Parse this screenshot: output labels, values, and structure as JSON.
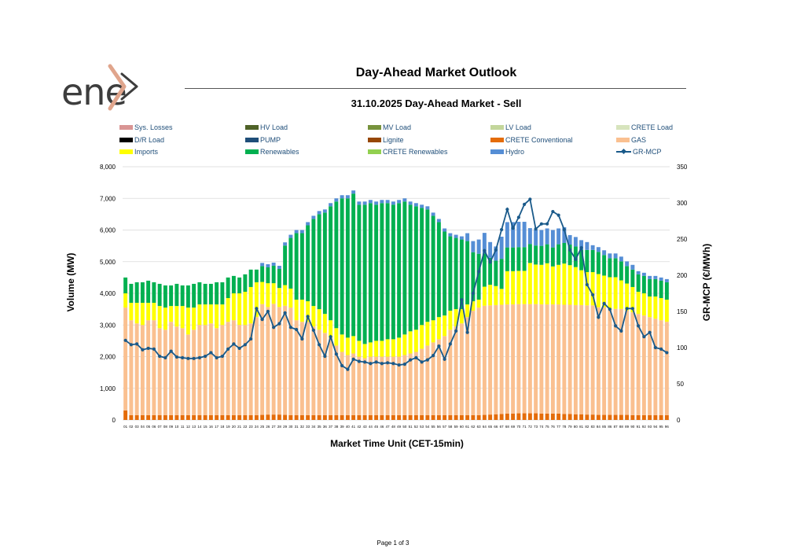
{
  "header": {
    "title": "Day-Ahead Market Outlook",
    "subtitle": "31.10.2025  Day-Ahead Market - Sell"
  },
  "logo": {
    "text": "ene",
    "icon": "enex-arrow-icon"
  },
  "footer": {
    "page": "Page 1 of 3"
  },
  "colors": {
    "sys_losses": "#d99594",
    "hv_load": "#4f6228",
    "mv_load": "#77933c",
    "lv_load": "#c3d69b",
    "crete_load": "#d7e4bd",
    "dr_load": "#000000",
    "pump": "#1f4e79",
    "lignite": "#974706",
    "crete_conventional": "#e46c0a",
    "gas": "#fac090",
    "imports": "#ffff00",
    "renewables": "#00b050",
    "crete_renewables": "#92d050",
    "hydro": "#558ed5",
    "gr_mcp": "#1a5a8a"
  },
  "chart_data": {
    "type": "bar",
    "stacked": true,
    "xlabel": "Market Time Unit (CET-15min)",
    "ylabel": "Volume (MW)",
    "y2label": "GR-MCP (€/MWh)",
    "ylim": [
      0,
      8000
    ],
    "y2lim": [
      0,
      350
    ],
    "yticks": [
      "0",
      "1,000",
      "2,000",
      "3,000",
      "4,000",
      "5,000",
      "6,000",
      "7,000",
      "8,000"
    ],
    "y2ticks": [
      "0",
      "50",
      "100",
      "150",
      "200",
      "250",
      "300",
      "350"
    ],
    "grid": true,
    "legend_position": "top",
    "legend": [
      {
        "key": "sys_losses",
        "label": "Sys. Losses",
        "kind": "bar"
      },
      {
        "key": "hv_load",
        "label": "HV Load",
        "kind": "bar"
      },
      {
        "key": "mv_load",
        "label": "MV Load",
        "kind": "bar"
      },
      {
        "key": "lv_load",
        "label": "LV Load",
        "kind": "bar"
      },
      {
        "key": "crete_load",
        "label": "CRETE Load",
        "kind": "bar"
      },
      {
        "key": "dr_load",
        "label": "D/R Load",
        "kind": "bar"
      },
      {
        "key": "pump",
        "label": "PUMP",
        "kind": "bar"
      },
      {
        "key": "lignite",
        "label": "Lignite",
        "kind": "bar"
      },
      {
        "key": "crete_conventional",
        "label": "CRETE Conventional",
        "kind": "bar"
      },
      {
        "key": "gas",
        "label": "GAS",
        "kind": "bar"
      },
      {
        "key": "imports",
        "label": "Imports",
        "kind": "bar"
      },
      {
        "key": "renewables",
        "label": "Renewables",
        "kind": "bar"
      },
      {
        "key": "crete_renewables",
        "label": "CRETE Renewables",
        "kind": "bar"
      },
      {
        "key": "hydro",
        "label": "Hydro",
        "kind": "bar"
      },
      {
        "key": "gr_mcp",
        "label": "GR-MCP",
        "kind": "line"
      }
    ],
    "categories": [
      "01",
      "02",
      "03",
      "04",
      "05",
      "06",
      "07",
      "08",
      "09",
      "10",
      "11",
      "12",
      "13",
      "14",
      "15",
      "16",
      "17",
      "18",
      "19",
      "20",
      "21",
      "22",
      "23",
      "24",
      "25",
      "26",
      "27",
      "28",
      "29",
      "30",
      "31",
      "32",
      "33",
      "34",
      "35",
      "36",
      "37",
      "38",
      "39",
      "40",
      "41",
      "42",
      "43",
      "44",
      "45",
      "46",
      "47",
      "48",
      "49",
      "50",
      "51",
      "52",
      "53",
      "54",
      "55",
      "56",
      "57",
      "58",
      "59",
      "60",
      "61",
      "62",
      "63",
      "64",
      "65",
      "66",
      "67",
      "68",
      "69",
      "70",
      "71",
      "72",
      "73",
      "74",
      "75",
      "76",
      "77",
      "78",
      "79",
      "80",
      "81",
      "82",
      "83",
      "84",
      "85",
      "86",
      "87",
      "88",
      "89",
      "90",
      "91",
      "92",
      "93",
      "94",
      "95",
      "96"
    ],
    "series": {
      "crete_conventional": [
        300,
        150,
        150,
        150,
        150,
        150,
        150,
        150,
        150,
        150,
        150,
        150,
        150,
        150,
        150,
        150,
        150,
        150,
        150,
        150,
        150,
        150,
        150,
        150,
        160,
        170,
        170,
        170,
        160,
        150,
        150,
        150,
        150,
        150,
        150,
        150,
        150,
        150,
        150,
        150,
        150,
        150,
        150,
        150,
        150,
        150,
        150,
        150,
        150,
        150,
        150,
        150,
        150,
        150,
        150,
        150,
        150,
        150,
        150,
        150,
        150,
        150,
        150,
        160,
        170,
        180,
        190,
        200,
        200,
        210,
        210,
        210,
        210,
        200,
        200,
        200,
        200,
        190,
        190,
        180,
        180,
        170,
        170,
        160,
        160,
        160,
        160,
        160,
        160,
        150,
        150,
        150,
        150,
        150,
        150,
        150
      ],
      "gas": [
        3250,
        3000,
        2900,
        2850,
        3000,
        3000,
        2750,
        2700,
        2950,
        2800,
        2750,
        2550,
        2700,
        2850,
        2850,
        2900,
        2750,
        2850,
        2950,
        3000,
        2850,
        2850,
        2900,
        3100,
        3500,
        3400,
        3500,
        3400,
        3450,
        3400,
        3000,
        2950,
        2950,
        2800,
        2700,
        2600,
        2450,
        2200,
        2000,
        1900,
        1950,
        1850,
        1800,
        1850,
        1850,
        1850,
        1850,
        1850,
        1850,
        1900,
        1950,
        2000,
        2100,
        2200,
        2300,
        2400,
        2500,
        2700,
        2800,
        2900,
        3100,
        3300,
        3400,
        3450,
        3450,
        3450,
        3450,
        3450,
        3450,
        3450,
        3450,
        3450,
        3450,
        3450,
        3450,
        3450,
        3450,
        3450,
        3450,
        3450,
        3450,
        3450,
        3450,
        3400,
        3400,
        3350,
        3350,
        3350,
        3300,
        3250,
        3200,
        3150,
        3100,
        3050,
        3000,
        2950
      ],
      "imports": [
        450,
        550,
        650,
        700,
        550,
        550,
        700,
        700,
        500,
        650,
        700,
        850,
        700,
        650,
        650,
        600,
        750,
        650,
        750,
        850,
        1000,
        1050,
        1150,
        1100,
        700,
        750,
        650,
        600,
        650,
        600,
        650,
        700,
        650,
        650,
        650,
        600,
        550,
        550,
        550,
        550,
        550,
        500,
        450,
        450,
        500,
        500,
        550,
        550,
        600,
        650,
        700,
        700,
        750,
        750,
        700,
        700,
        650,
        600,
        550,
        450,
        400,
        300,
        250,
        600,
        650,
        600,
        500,
        1050,
        1050,
        1050,
        1050,
        1300,
        1250,
        1250,
        1300,
        1200,
        1250,
        1300,
        1250,
        1200,
        1100,
        1050,
        1050,
        1050,
        1000,
        1000,
        1000,
        900,
        850,
        800,
        700,
        700,
        650,
        700,
        700,
        700
      ],
      "renewables": [
        500,
        600,
        650,
        650,
        700,
        650,
        700,
        700,
        650,
        700,
        650,
        700,
        750,
        700,
        650,
        650,
        700,
        700,
        650,
        550,
        500,
        550,
        550,
        400,
        500,
        500,
        550,
        600,
        1250,
        1600,
        2100,
        2100,
        2400,
        2750,
        3000,
        3200,
        3600,
        4000,
        4300,
        4400,
        4500,
        4300,
        4400,
        4400,
        4300,
        4350,
        4300,
        4250,
        4250,
        4200,
        4000,
        3900,
        3700,
        3550,
        3300,
        3000,
        2650,
        2350,
        2250,
        2200,
        2000,
        1550,
        1450,
        1050,
        850,
        800,
        950,
        750,
        750,
        750,
        750,
        600,
        600,
        600,
        600,
        600,
        650,
        650,
        650,
        650,
        650,
        700,
        700,
        700,
        650,
        600,
        600,
        600,
        550,
        550,
        550,
        550,
        550,
        550,
        550,
        550
      ],
      "hydro": [
        0,
        0,
        0,
        0,
        0,
        0,
        0,
        0,
        0,
        0,
        0,
        0,
        0,
        0,
        0,
        0,
        0,
        0,
        0,
        0,
        0,
        0,
        0,
        0,
        100,
        100,
        100,
        100,
        100,
        100,
        100,
        100,
        100,
        100,
        100,
        100,
        100,
        100,
        100,
        100,
        100,
        100,
        100,
        100,
        100,
        100,
        100,
        100,
        100,
        100,
        100,
        100,
        100,
        100,
        100,
        100,
        100,
        100,
        100,
        100,
        250,
        350,
        450,
        650,
        500,
        450,
        700,
        800,
        800,
        800,
        800,
        500,
        500,
        500,
        500,
        550,
        500,
        500,
        300,
        300,
        300,
        250,
        150,
        150,
        150,
        150,
        150,
        150,
        150,
        150,
        100,
        100,
        100,
        100,
        100,
        100
      ],
      "gr_mcp": [
        110,
        104,
        105,
        97,
        99,
        98,
        88,
        86,
        95,
        87,
        86,
        85,
        85,
        86,
        88,
        93,
        86,
        88,
        98,
        105,
        99,
        104,
        112,
        154,
        139,
        150,
        128,
        133,
        148,
        128,
        125,
        112,
        143,
        124,
        104,
        88,
        115,
        91,
        75,
        70,
        84,
        81,
        80,
        78,
        80,
        78,
        79,
        78,
        76,
        77,
        83,
        86,
        80,
        83,
        89,
        102,
        84,
        105,
        123,
        166,
        121,
        175,
        205,
        234,
        218,
        235,
        263,
        291,
        265,
        280,
        298,
        305,
        264,
        271,
        271,
        288,
        283,
        263,
        235,
        222,
        238,
        187,
        173,
        142,
        161,
        153,
        130,
        123,
        154,
        154,
        130,
        115,
        121,
        100,
        98,
        93
      ]
    }
  }
}
